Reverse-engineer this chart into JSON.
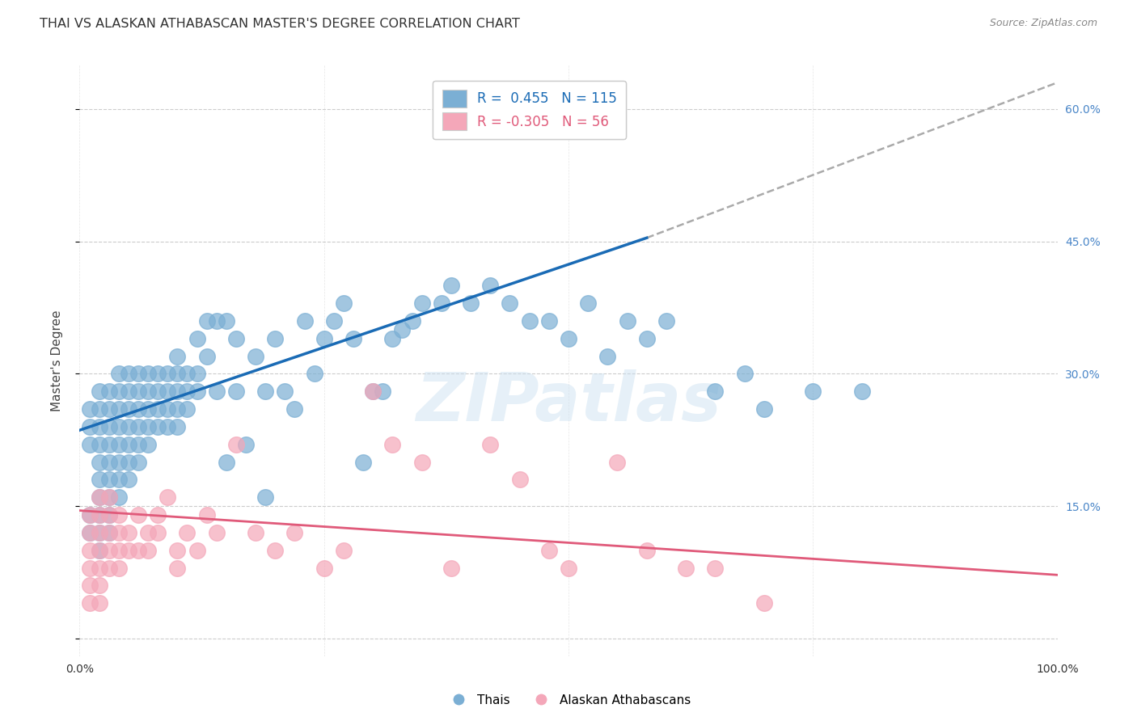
{
  "title": "THAI VS ALASKAN ATHABASCAN MASTER'S DEGREE CORRELATION CHART",
  "source": "Source: ZipAtlas.com",
  "ylabel": "Master's Degree",
  "xlim": [
    0.0,
    1.0
  ],
  "ylim": [
    -0.02,
    0.65
  ],
  "yticks": [
    0.0,
    0.15,
    0.3,
    0.45,
    0.6
  ],
  "xticks": [
    0.0,
    0.25,
    0.5,
    0.75,
    1.0
  ],
  "xtick_labels": [
    "0.0%",
    "",
    "",
    "",
    "100.0%"
  ],
  "right_ytick_labels": [
    "15.0%",
    "30.0%",
    "45.0%",
    "60.0%"
  ],
  "right_ytick_vals": [
    0.15,
    0.3,
    0.45,
    0.6
  ],
  "thai_color": "#7bafd4",
  "pink_color": "#f4a7b9",
  "blue_line_color": "#1a6bb5",
  "pink_line_color": "#e05a7a",
  "dashed_line_color": "#aaaaaa",
  "legend_blue_label": "R =  0.455   N = 115",
  "legend_pink_label": "R = -0.305   N = 56",
  "legend_bottom_blue": "Thais",
  "legend_bottom_pink": "Alaskan Athabascans",
  "watermark": "ZIPatlas",
  "thai_x": [
    0.01,
    0.01,
    0.01,
    0.01,
    0.01,
    0.02,
    0.02,
    0.02,
    0.02,
    0.02,
    0.02,
    0.02,
    0.02,
    0.02,
    0.02,
    0.03,
    0.03,
    0.03,
    0.03,
    0.03,
    0.03,
    0.03,
    0.03,
    0.03,
    0.04,
    0.04,
    0.04,
    0.04,
    0.04,
    0.04,
    0.04,
    0.04,
    0.05,
    0.05,
    0.05,
    0.05,
    0.05,
    0.05,
    0.05,
    0.06,
    0.06,
    0.06,
    0.06,
    0.06,
    0.06,
    0.07,
    0.07,
    0.07,
    0.07,
    0.07,
    0.08,
    0.08,
    0.08,
    0.08,
    0.09,
    0.09,
    0.09,
    0.09,
    0.1,
    0.1,
    0.1,
    0.1,
    0.1,
    0.11,
    0.11,
    0.11,
    0.12,
    0.12,
    0.12,
    0.13,
    0.13,
    0.14,
    0.14,
    0.15,
    0.15,
    0.16,
    0.16,
    0.17,
    0.18,
    0.19,
    0.19,
    0.2,
    0.21,
    0.22,
    0.23,
    0.24,
    0.25,
    0.26,
    0.27,
    0.28,
    0.29,
    0.3,
    0.31,
    0.32,
    0.33,
    0.34,
    0.35,
    0.37,
    0.38,
    0.4,
    0.42,
    0.44,
    0.46,
    0.48,
    0.5,
    0.52,
    0.54,
    0.56,
    0.58,
    0.6,
    0.65,
    0.68,
    0.7,
    0.75,
    0.8
  ],
  "thai_y": [
    0.22,
    0.24,
    0.26,
    0.14,
    0.12,
    0.24,
    0.26,
    0.28,
    0.22,
    0.2,
    0.16,
    0.14,
    0.18,
    0.12,
    0.1,
    0.28,
    0.26,
    0.24,
    0.22,
    0.2,
    0.18,
    0.16,
    0.14,
    0.12,
    0.3,
    0.28,
    0.26,
    0.24,
    0.22,
    0.2,
    0.18,
    0.16,
    0.3,
    0.28,
    0.26,
    0.24,
    0.22,
    0.2,
    0.18,
    0.3,
    0.28,
    0.26,
    0.24,
    0.22,
    0.2,
    0.3,
    0.28,
    0.26,
    0.24,
    0.22,
    0.3,
    0.28,
    0.26,
    0.24,
    0.3,
    0.28,
    0.26,
    0.24,
    0.32,
    0.3,
    0.28,
    0.26,
    0.24,
    0.3,
    0.28,
    0.26,
    0.34,
    0.3,
    0.28,
    0.36,
    0.32,
    0.36,
    0.28,
    0.36,
    0.2,
    0.34,
    0.28,
    0.22,
    0.32,
    0.28,
    0.16,
    0.34,
    0.28,
    0.26,
    0.36,
    0.3,
    0.34,
    0.36,
    0.38,
    0.34,
    0.2,
    0.28,
    0.28,
    0.34,
    0.35,
    0.36,
    0.38,
    0.38,
    0.4,
    0.38,
    0.4,
    0.38,
    0.36,
    0.36,
    0.34,
    0.38,
    0.32,
    0.36,
    0.34,
    0.36,
    0.28,
    0.3,
    0.26,
    0.28,
    0.28
  ],
  "pink_x": [
    0.01,
    0.01,
    0.01,
    0.01,
    0.01,
    0.01,
    0.02,
    0.02,
    0.02,
    0.02,
    0.02,
    0.02,
    0.02,
    0.03,
    0.03,
    0.03,
    0.03,
    0.03,
    0.04,
    0.04,
    0.04,
    0.04,
    0.05,
    0.05,
    0.06,
    0.06,
    0.07,
    0.07,
    0.08,
    0.08,
    0.09,
    0.1,
    0.1,
    0.11,
    0.12,
    0.13,
    0.14,
    0.16,
    0.18,
    0.2,
    0.22,
    0.25,
    0.27,
    0.3,
    0.32,
    0.35,
    0.38,
    0.42,
    0.45,
    0.48,
    0.5,
    0.55,
    0.58,
    0.62,
    0.65,
    0.7
  ],
  "pink_y": [
    0.14,
    0.12,
    0.1,
    0.08,
    0.06,
    0.04,
    0.12,
    0.1,
    0.08,
    0.06,
    0.14,
    0.16,
    0.04,
    0.12,
    0.1,
    0.08,
    0.14,
    0.16,
    0.1,
    0.12,
    0.08,
    0.14,
    0.1,
    0.12,
    0.1,
    0.14,
    0.12,
    0.1,
    0.12,
    0.14,
    0.16,
    0.1,
    0.08,
    0.12,
    0.1,
    0.14,
    0.12,
    0.22,
    0.12,
    0.1,
    0.12,
    0.08,
    0.1,
    0.28,
    0.22,
    0.2,
    0.08,
    0.22,
    0.18,
    0.1,
    0.08,
    0.2,
    0.1,
    0.08,
    0.08,
    0.04
  ],
  "blue_line_x": [
    0.0,
    0.58
  ],
  "blue_line_y": [
    0.236,
    0.454
  ],
  "dashed_line_x": [
    0.58,
    1.0
  ],
  "dashed_line_y": [
    0.454,
    0.63
  ],
  "pink_line_x": [
    0.0,
    1.0
  ],
  "pink_line_y": [
    0.145,
    0.072
  ],
  "background_color": "#ffffff",
  "grid_color": "#cccccc",
  "title_color": "#333333",
  "right_ytick_color": "#4a86c8"
}
